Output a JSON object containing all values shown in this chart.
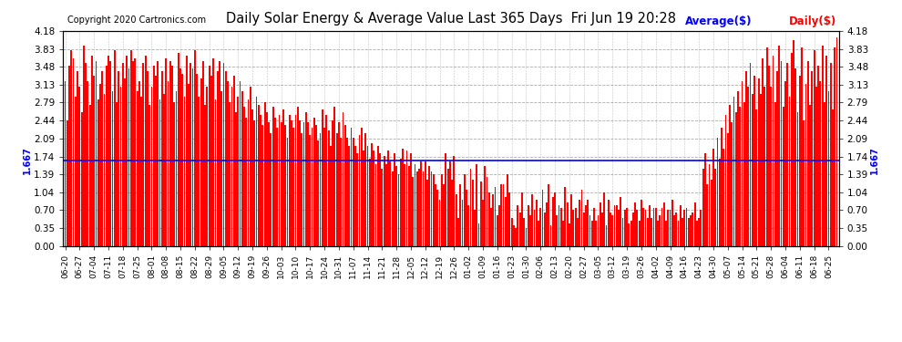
{
  "title": "Daily Solar Energy & Average Value Last 365 Days  Fri Jun 19 20:28",
  "copyright": "Copyright 2020 Cartronics.com",
  "avg_label": "Average($)",
  "daily_label": "Daily($)",
  "avg_value": 1.667,
  "bar_color": "#ff0000",
  "avg_line_color": "#0000ff",
  "bg_color": "#ffffff",
  "grid_color": "#999999",
  "yticks": [
    0.0,
    0.35,
    0.7,
    1.04,
    1.39,
    1.74,
    2.09,
    2.44,
    2.79,
    3.13,
    3.48,
    3.83,
    4.18
  ],
  "ylim": [
    0.0,
    4.18
  ],
  "start_date": "2019-06-20",
  "values": [
    3.2,
    2.45,
    3.5,
    3.8,
    3.65,
    2.9,
    3.4,
    3.1,
    2.6,
    3.9,
    3.55,
    3.2,
    2.75,
    3.7,
    3.3,
    3.6,
    2.85,
    3.15,
    3.4,
    2.95,
    3.5,
    3.7,
    3.6,
    3.0,
    3.8,
    2.8,
    3.4,
    3.1,
    3.55,
    3.25,
    3.7,
    3.45,
    3.8,
    3.6,
    3.65,
    3.0,
    3.2,
    2.9,
    3.55,
    3.7,
    3.4,
    2.75,
    3.1,
    3.5,
    3.3,
    3.6,
    2.85,
    3.4,
    2.95,
    3.65,
    3.2,
    3.6,
    3.5,
    2.8,
    3.0,
    3.75,
    3.45,
    3.35,
    2.9,
    3.7,
    3.15,
    3.55,
    3.45,
    3.8,
    3.35,
    2.9,
    3.25,
    3.6,
    2.75,
    3.1,
    3.5,
    3.3,
    3.65,
    2.85,
    3.4,
    3.6,
    3.0,
    3.55,
    3.4,
    3.2,
    2.8,
    3.1,
    3.3,
    2.6,
    2.9,
    3.2,
    3.0,
    2.7,
    2.5,
    2.85,
    3.1,
    2.65,
    2.45,
    2.9,
    2.75,
    2.55,
    2.35,
    2.8,
    2.6,
    2.4,
    2.2,
    2.7,
    2.5,
    2.3,
    2.55,
    2.4,
    2.65,
    2.35,
    2.1,
    2.55,
    2.45,
    2.3,
    2.55,
    2.7,
    2.45,
    2.2,
    2.4,
    2.6,
    2.4,
    2.15,
    2.3,
    2.5,
    2.35,
    2.05,
    2.2,
    2.65,
    2.3,
    2.55,
    2.25,
    1.95,
    2.45,
    2.7,
    2.2,
    2.4,
    2.1,
    2.6,
    2.35,
    2.1,
    1.95,
    2.3,
    2.1,
    1.95,
    1.8,
    2.15,
    2.3,
    1.85,
    2.2,
    1.95,
    1.7,
    2.0,
    1.85,
    1.6,
    1.95,
    1.8,
    1.5,
    1.75,
    1.6,
    1.85,
    1.65,
    1.45,
    1.8,
    1.55,
    1.4,
    1.7,
    1.9,
    1.6,
    1.85,
    1.55,
    1.8,
    1.35,
    1.6,
    1.45,
    1.5,
    1.65,
    1.45,
    1.65,
    1.3,
    1.55,
    1.45,
    1.4,
    1.2,
    1.1,
    0.9,
    1.4,
    1.2,
    1.8,
    1.5,
    1.65,
    1.3,
    1.75,
    1.0,
    0.55,
    1.2,
    0.9,
    1.4,
    1.1,
    0.8,
    1.5,
    1.3,
    0.7,
    1.6,
    0.45,
    1.25,
    0.9,
    1.55,
    1.35,
    1.05,
    0.75,
    1.0,
    1.15,
    0.6,
    0.8,
    1.2,
    1.2,
    0.95,
    1.4,
    1.05,
    0.55,
    0.4,
    0.35,
    0.8,
    0.65,
    1.05,
    0.55,
    0.35,
    0.8,
    0.6,
    1.0,
    0.7,
    0.9,
    0.5,
    0.75,
    1.1,
    0.65,
    0.85,
    1.2,
    0.4,
    0.95,
    1.05,
    0.6,
    0.8,
    0.75,
    0.5,
    1.15,
    0.85,
    0.45,
    1.0,
    0.7,
    0.75,
    0.55,
    0.9,
    1.1,
    0.65,
    0.8,
    0.9,
    0.6,
    0.5,
    0.75,
    0.5,
    0.6,
    0.85,
    0.65,
    1.05,
    0.4,
    0.9,
    0.65,
    0.6,
    0.8,
    0.8,
    0.7,
    0.95,
    0.55,
    0.7,
    0.75,
    0.45,
    0.5,
    0.65,
    0.85,
    0.7,
    0.5,
    0.9,
    0.75,
    0.7,
    0.55,
    0.8,
    0.55,
    0.75,
    0.75,
    0.5,
    0.6,
    0.75,
    0.85,
    0.5,
    0.7,
    0.7,
    0.9,
    0.6,
    0.65,
    0.5,
    0.8,
    0.55,
    0.7,
    0.75,
    0.55,
    0.6,
    0.65,
    0.85,
    0.5,
    0.55,
    0.7,
    1.5,
    1.8,
    1.2,
    1.6,
    1.3,
    1.9,
    1.5,
    2.1,
    1.7,
    2.3,
    1.9,
    2.55,
    2.2,
    2.75,
    2.4,
    2.9,
    2.6,
    3.0,
    2.7,
    3.2,
    2.8,
    3.4,
    3.1,
    3.55,
    2.95,
    3.3,
    2.65,
    3.25,
    2.95,
    3.65,
    3.1,
    3.85,
    3.5,
    3.1,
    3.7,
    2.8,
    3.4,
    3.9,
    3.6,
    2.7,
    3.2,
    3.55,
    2.9,
    3.75,
    4.0,
    3.45,
    2.6,
    3.3,
    3.85,
    2.45,
    3.15,
    3.6,
    2.75,
    3.4,
    3.8,
    3.1,
    3.5,
    3.2,
    3.9,
    2.8,
    3.7,
    3.0,
    3.55,
    2.65,
    3.85,
    4.05
  ]
}
